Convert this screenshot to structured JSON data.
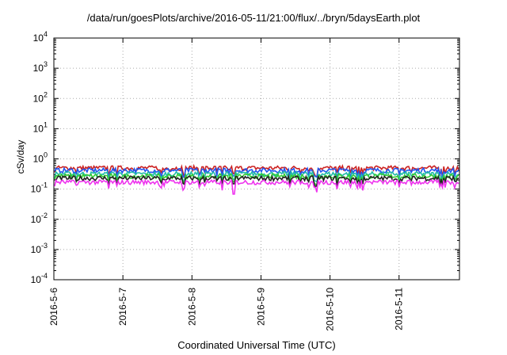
{
  "chart_data": {
    "type": "line",
    "title": "/data/run/goesPlots/archive/2016-05-11/21:00/flux/../bryn/5daysEarth.plot",
    "xlabel": "Coordinated Universal Time (UTC)",
    "ylabel": "cSv/day",
    "yscale": "log",
    "ylim": [
      0.0001,
      10000
    ],
    "xlim": [
      "2016-05-06",
      "2016-05-11 21:00"
    ],
    "xticks": [
      "2016-5-6",
      "2016-5-7",
      "2016-5-8",
      "2016-5-9",
      "2016-5-10",
      "2016-5-11"
    ],
    "yticks": [
      {
        "base": "10",
        "exp": "-4"
      },
      {
        "base": "10",
        "exp": "-3"
      },
      {
        "base": "10",
        "exp": "-2"
      },
      {
        "base": "10",
        "exp": "-1"
      },
      {
        "base": "10",
        "exp": "0"
      },
      {
        "base": "10",
        "exp": "1"
      },
      {
        "base": "10",
        "exp": "2"
      },
      {
        "base": "10",
        "exp": "3"
      },
      {
        "base": "10",
        "exp": "4"
      }
    ],
    "grid": true,
    "legend": "none",
    "series": [
      {
        "color": "#cc2222",
        "base": 0.5,
        "values": []
      },
      {
        "color": "#2255ee",
        "base": 0.42,
        "values": []
      },
      {
        "color": "#22bbaa",
        "base": 0.32,
        "values": []
      },
      {
        "color": "#33cc33",
        "base": 0.27,
        "values": []
      },
      {
        "color": "#222222",
        "base": 0.23,
        "values": []
      },
      {
        "color": "#ee33ee",
        "base": 0.17,
        "values": []
      }
    ]
  }
}
